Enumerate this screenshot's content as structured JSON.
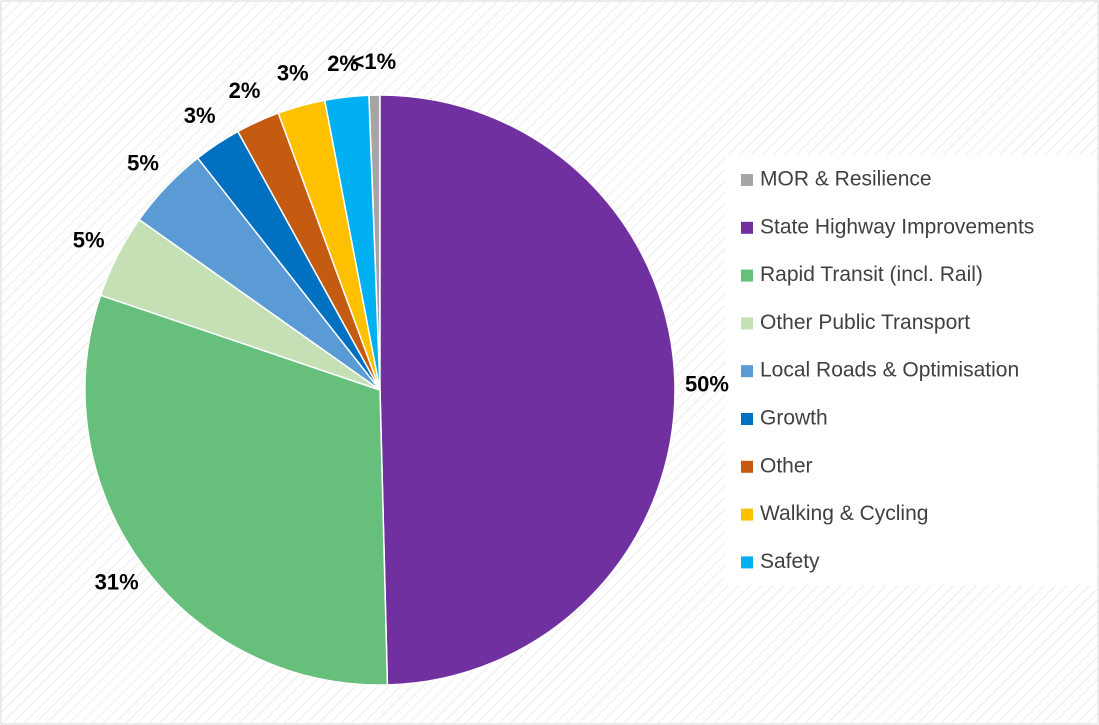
{
  "chart_data": {
    "type": "pie",
    "categories": [
      "MOR & Resilience",
      "State Highway Improvements",
      "Rapid Transit (incl. Rail)",
      "Other Public Transport",
      "Local Roads & Optimisation",
      "Growth",
      "Other",
      "Walking & Cycling",
      "Safety"
    ],
    "values": [
      0.6,
      49.6,
      30.6,
      4.6,
      4.6,
      2.6,
      2.4,
      2.6,
      2.4
    ],
    "value_labels": [
      "<1%",
      "50%",
      "31%",
      "5%",
      "5%",
      "3%",
      "2%",
      "3%",
      "2%"
    ],
    "colors": [
      "#a5a5a5",
      "#7030a0",
      "#66bf7a",
      "#c5e0b4",
      "#5b9bd5",
      "#0070c0",
      "#c55a11",
      "#ffc000",
      "#00b0f0"
    ],
    "legend": "right"
  }
}
